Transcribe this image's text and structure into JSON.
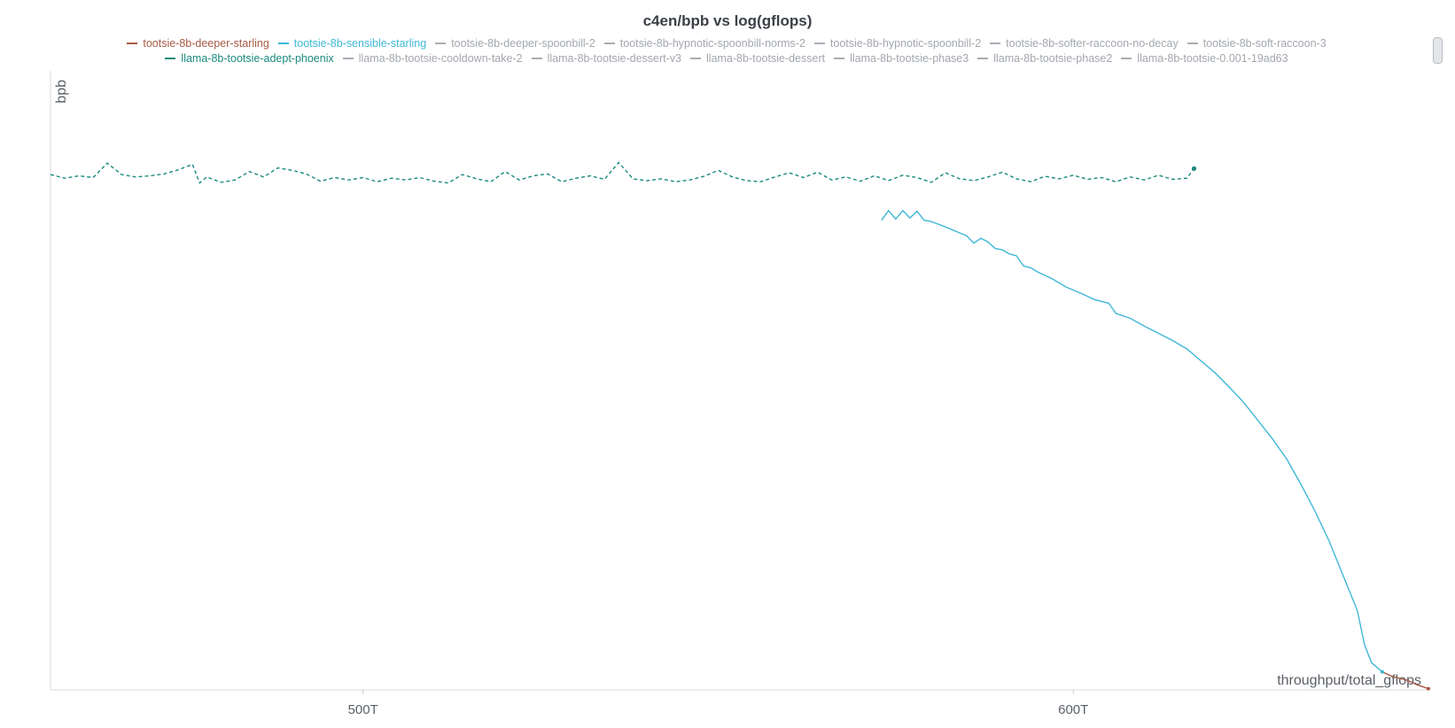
{
  "chart_data": {
    "type": "line",
    "title": "c4en/bpb vs log(gflops)",
    "xlabel": "throughput/total_gflops",
    "ylabel": "bpb",
    "x_unit": "T",
    "xlim": [
      456,
      650
    ],
    "ylim": [
      0.0,
      1.0
    ],
    "x_ticks": [
      {
        "value": 500,
        "label": "500T"
      },
      {
        "value": 600,
        "label": "600T"
      }
    ],
    "grid": false,
    "legend_position": "top",
    "series": [
      {
        "name": "tootsie-8b-deeper-starling",
        "color": "#a85a45",
        "dash": "solid",
        "active": true
      },
      {
        "name": "tootsie-8b-sensible-starling",
        "color": "#3fb7d6",
        "dash": "solid",
        "active": true
      },
      {
        "name": "tootsie-8b-deeper-spoonbill-2",
        "color": "#a9adb3",
        "dash": "solid",
        "active": false
      },
      {
        "name": "tootsie-8b-hypnotic-spoonbill-norms-2",
        "color": "#a9adb3",
        "dash": "solid",
        "active": false
      },
      {
        "name": "tootsie-8b-hypnotic-spoonbill-2",
        "color": "#a9adb3",
        "dash": "solid",
        "active": false
      },
      {
        "name": "tootsie-8b-softer-raccoon-no-decay",
        "color": "#a9adb3",
        "dash": "solid",
        "active": false
      },
      {
        "name": "tootsie-8b-soft-raccoon-3",
        "color": "#a9adb3",
        "dash": "solid",
        "active": false
      },
      {
        "name": "llama-8b-tootsie-adept-phoenix",
        "color": "#1a8a7e",
        "dash": "dashed",
        "active": true
      },
      {
        "name": "llama-8b-tootsie-cooldown-take-2",
        "color": "#a9adb3",
        "dash": "solid",
        "active": false
      },
      {
        "name": "llama-8b-tootsie-dessert-v3",
        "color": "#a9adb3",
        "dash": "dashed",
        "active": false
      },
      {
        "name": "llama-8b-tootsie-dessert",
        "color": "#a9adb3",
        "dash": "solid",
        "active": false
      },
      {
        "name": "llama-8b-tootsie-phase3",
        "color": "#a9adb3",
        "dash": "dashed",
        "active": false
      },
      {
        "name": "llama-8b-tootsie-phase2",
        "color": "#a9adb3",
        "dash": "dashed",
        "active": false
      },
      {
        "name": "llama-8b-tootsie-0.001-19ad63",
        "color": "#a9adb3",
        "dash": "dashed",
        "active": false
      }
    ],
    "legend_rows": [
      [
        0,
        1,
        2,
        3,
        4,
        5,
        6
      ],
      [
        7,
        8,
        9,
        10,
        11,
        12,
        13
      ]
    ],
    "data": {
      "llama-8b-tootsie-adept-phoenix": [
        [
          456,
          0.857
        ],
        [
          458,
          0.851
        ],
        [
          460,
          0.855
        ],
        [
          462,
          0.852
        ],
        [
          464,
          0.876
        ],
        [
          466,
          0.857
        ],
        [
          468,
          0.853
        ],
        [
          470,
          0.855
        ],
        [
          472,
          0.858
        ],
        [
          474,
          0.865
        ],
        [
          476,
          0.874
        ],
        [
          477,
          0.843
        ],
        [
          478,
          0.853
        ],
        [
          480,
          0.844
        ],
        [
          482,
          0.848
        ],
        [
          484,
          0.862
        ],
        [
          486,
          0.853
        ],
        [
          488,
          0.868
        ],
        [
          490,
          0.864
        ],
        [
          492,
          0.858
        ],
        [
          494,
          0.846
        ],
        [
          496,
          0.852
        ],
        [
          498,
          0.848
        ],
        [
          500,
          0.852
        ],
        [
          502,
          0.845
        ],
        [
          504,
          0.851
        ],
        [
          506,
          0.848
        ],
        [
          508,
          0.852
        ],
        [
          510,
          0.846
        ],
        [
          512,
          0.843
        ],
        [
          514,
          0.857
        ],
        [
          516,
          0.85
        ],
        [
          518,
          0.845
        ],
        [
          520,
          0.862
        ],
        [
          522,
          0.848
        ],
        [
          524,
          0.855
        ],
        [
          526,
          0.858
        ],
        [
          528,
          0.845
        ],
        [
          530,
          0.851
        ],
        [
          532,
          0.855
        ],
        [
          534,
          0.849
        ],
        [
          536,
          0.877
        ],
        [
          538,
          0.85
        ],
        [
          540,
          0.847
        ],
        [
          542,
          0.85
        ],
        [
          544,
          0.845
        ],
        [
          546,
          0.848
        ],
        [
          548,
          0.854
        ],
        [
          550,
          0.864
        ],
        [
          552,
          0.853
        ],
        [
          554,
          0.847
        ],
        [
          556,
          0.845
        ],
        [
          558,
          0.853
        ],
        [
          560,
          0.86
        ],
        [
          562,
          0.852
        ],
        [
          564,
          0.861
        ],
        [
          566,
          0.848
        ],
        [
          568,
          0.853
        ],
        [
          570,
          0.846
        ],
        [
          572,
          0.855
        ],
        [
          574,
          0.847
        ],
        [
          576,
          0.856
        ],
        [
          578,
          0.852
        ],
        [
          580,
          0.844
        ],
        [
          582,
          0.86
        ],
        [
          584,
          0.85
        ],
        [
          586,
          0.847
        ],
        [
          588,
          0.853
        ],
        [
          590,
          0.861
        ],
        [
          592,
          0.85
        ],
        [
          594,
          0.845
        ],
        [
          596,
          0.854
        ],
        [
          598,
          0.85
        ],
        [
          600,
          0.856
        ],
        [
          602,
          0.849
        ],
        [
          604,
          0.852
        ],
        [
          606,
          0.845
        ],
        [
          608,
          0.853
        ],
        [
          610,
          0.848
        ],
        [
          612,
          0.856
        ],
        [
          614,
          0.849
        ],
        [
          616,
          0.851
        ],
        [
          617,
          0.867
        ]
      ],
      "tootsie-8b-sensible-starling": [
        [
          573,
          0.781
        ],
        [
          574,
          0.797
        ],
        [
          575,
          0.783
        ],
        [
          576,
          0.797
        ],
        [
          577,
          0.785
        ],
        [
          578,
          0.796
        ],
        [
          579,
          0.781
        ],
        [
          580,
          0.779
        ],
        [
          582,
          0.77
        ],
        [
          584,
          0.76
        ],
        [
          585,
          0.755
        ],
        [
          586,
          0.743
        ],
        [
          587,
          0.751
        ],
        [
          588,
          0.745
        ],
        [
          589,
          0.734
        ],
        [
          590,
          0.732
        ],
        [
          591,
          0.725
        ],
        [
          592,
          0.722
        ],
        [
          593,
          0.705
        ],
        [
          594,
          0.702
        ],
        [
          595,
          0.695
        ],
        [
          597,
          0.684
        ],
        [
          599,
          0.67
        ],
        [
          601,
          0.66
        ],
        [
          603,
          0.649
        ],
        [
          605,
          0.643
        ],
        [
          606,
          0.626
        ],
        [
          608,
          0.618
        ],
        [
          610,
          0.605
        ],
        [
          612,
          0.593
        ],
        [
          614,
          0.581
        ],
        [
          616,
          0.567
        ],
        [
          618,
          0.547
        ],
        [
          620,
          0.527
        ],
        [
          622,
          0.503
        ],
        [
          624,
          0.478
        ],
        [
          626,
          0.448
        ],
        [
          628,
          0.418
        ],
        [
          630,
          0.385
        ],
        [
          632,
          0.343
        ],
        [
          634,
          0.298
        ],
        [
          636,
          0.248
        ],
        [
          638,
          0.19
        ],
        [
          640,
          0.132
        ],
        [
          641,
          0.075
        ],
        [
          642,
          0.045
        ],
        [
          643.5,
          0.03
        ]
      ],
      "tootsie-8b-deeper-starling": [
        [
          643.5,
          0.03
        ],
        [
          645,
          0.022
        ],
        [
          647,
          0.016
        ],
        [
          648.5,
          0.008
        ],
        [
          650,
          0.002
        ]
      ]
    }
  }
}
